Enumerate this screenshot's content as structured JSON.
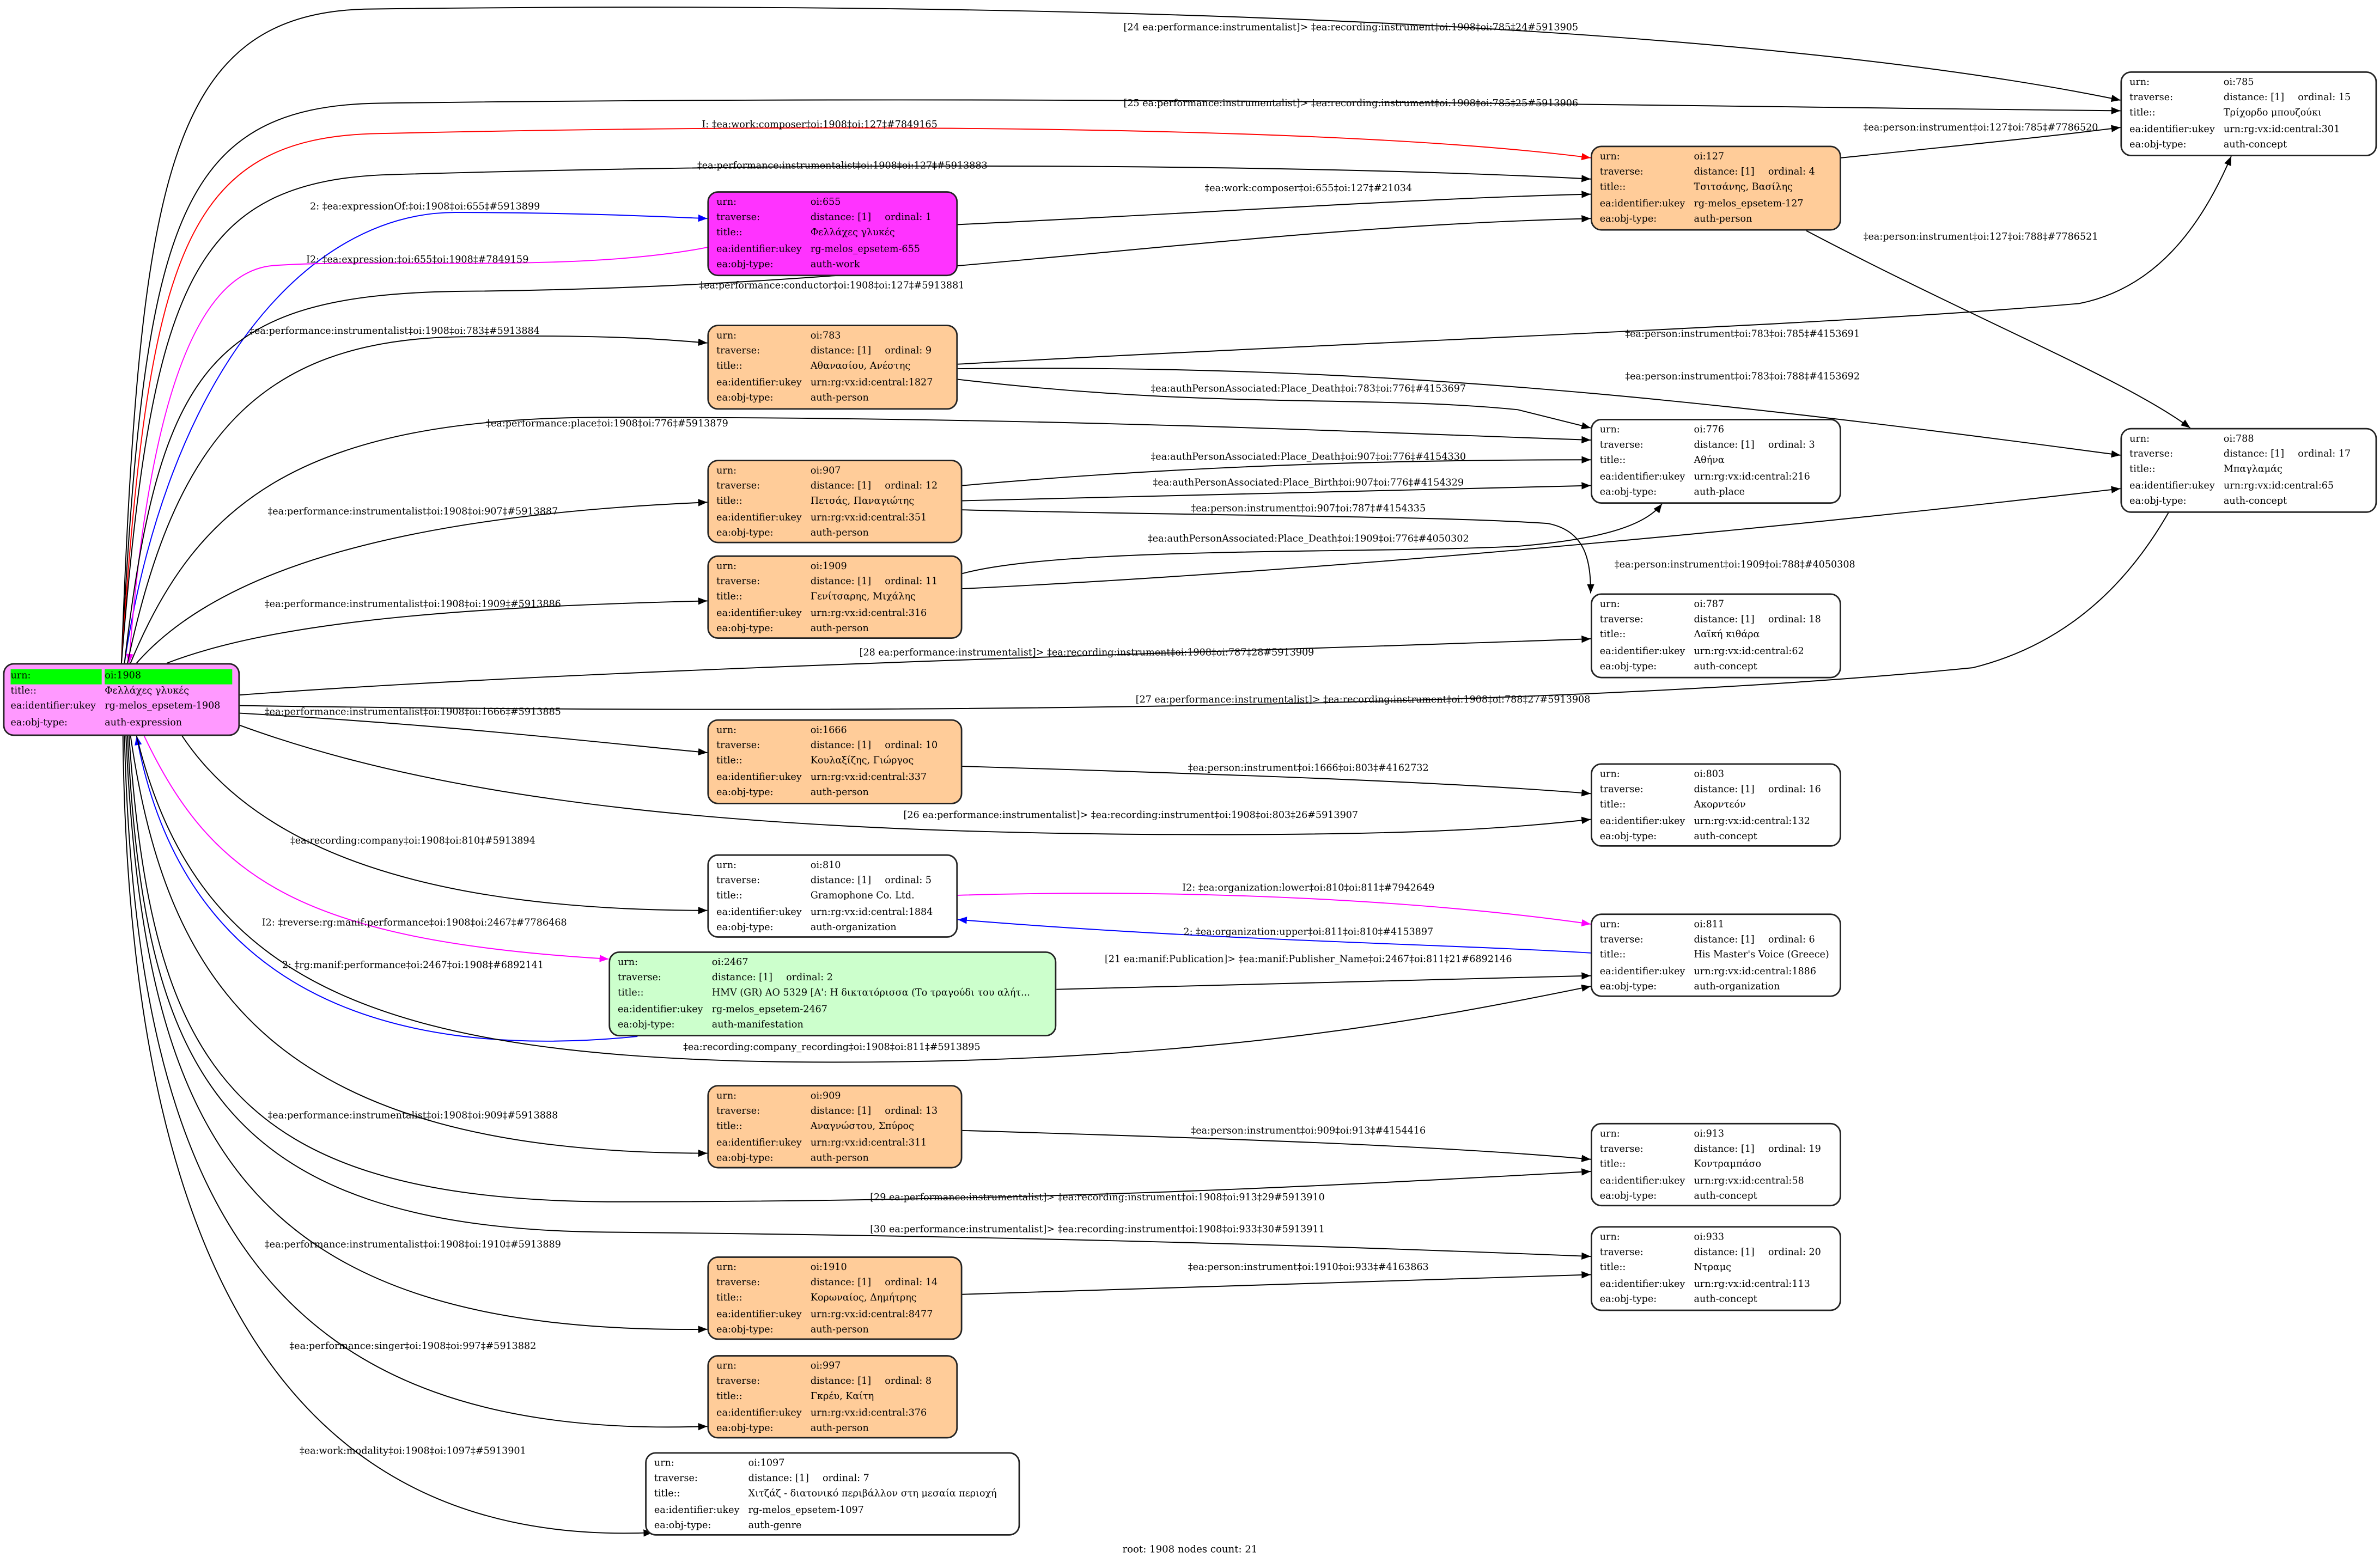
{
  "colors": {
    "root_fill": "#ff99ff",
    "root_highlight": "#00ff00",
    "work_fill": "#ff33ff",
    "person_fill": "#ffcc99",
    "manifestation_fill": "#ccffcc",
    "default_fill": "#ffffff",
    "edge_default": "#000000",
    "edge_red": "#ff0000",
    "edge_blue": "#0000ff",
    "edge_magenta": "#ff00ff"
  },
  "row_labels": {
    "urn": "urn:",
    "traverse": "traverse:",
    "title": "title::",
    "ukey": "ea:identifier:ukey",
    "obj_type": "ea:obj-type:"
  },
  "nodes": [
    {
      "id": "1908",
      "urn": "oi:1908",
      "title": "Φελλάχες γλυκές",
      "ukey": "rg-melos_epsetem-1908",
      "obj_type": "auth-expression",
      "fill": "#ff99ff",
      "root": true
    },
    {
      "id": "655",
      "urn": "oi:655",
      "distance": "distance: [1]",
      "ordinal": "ordinal: 1",
      "title": "Φελλάχες γλυκές",
      "ukey": "rg-melos_epsetem-655",
      "obj_type": "auth-work",
      "fill": "#ff33ff"
    },
    {
      "id": "127",
      "urn": "oi:127",
      "distance": "distance: [1]",
      "ordinal": "ordinal: 4",
      "title": "Τσιτσάνης, Βασίλης",
      "ukey": "rg-melos_epsetem-127",
      "obj_type": "auth-person",
      "fill": "#ffcc99"
    },
    {
      "id": "785",
      "urn": "oi:785",
      "distance": "distance: [1]",
      "ordinal": "ordinal: 15",
      "title": "Τρίχορδο μπουζούκι",
      "ukey": "urn:rg:vx:id:central:301",
      "obj_type": "auth-concept",
      "fill": "#ffffff"
    },
    {
      "id": "783",
      "urn": "oi:783",
      "distance": "distance: [1]",
      "ordinal": "ordinal: 9",
      "title": "Αθανασίου, Ανέστης",
      "ukey": "urn:rg:vx:id:central:1827",
      "obj_type": "auth-person",
      "fill": "#ffcc99"
    },
    {
      "id": "776",
      "urn": "oi:776",
      "distance": "distance: [1]",
      "ordinal": "ordinal: 3",
      "title": "Αθήνα",
      "ukey": "urn:rg:vx:id:central:216",
      "obj_type": "auth-place",
      "fill": "#ffffff"
    },
    {
      "id": "788",
      "urn": "oi:788",
      "distance": "distance: [1]",
      "ordinal": "ordinal: 17",
      "title": "Μπαγλαμάς",
      "ukey": "urn:rg:vx:id:central:65",
      "obj_type": "auth-concept",
      "fill": "#ffffff"
    },
    {
      "id": "907",
      "urn": "oi:907",
      "distance": "distance: [1]",
      "ordinal": "ordinal: 12",
      "title": "Πετσάς, Παναγιώτης",
      "ukey": "urn:rg:vx:id:central:351",
      "obj_type": "auth-person",
      "fill": "#ffcc99"
    },
    {
      "id": "1909",
      "urn": "oi:1909",
      "distance": "distance: [1]",
      "ordinal": "ordinal: 11",
      "title": "Γενίτσαρης, Μιχάλης",
      "ukey": "urn:rg:vx:id:central:316",
      "obj_type": "auth-person",
      "fill": "#ffcc99"
    },
    {
      "id": "787",
      "urn": "oi:787",
      "distance": "distance: [1]",
      "ordinal": "ordinal: 18",
      "title": "Λαϊκή κιθάρα",
      "ukey": "urn:rg:vx:id:central:62",
      "obj_type": "auth-concept",
      "fill": "#ffffff"
    },
    {
      "id": "1666",
      "urn": "oi:1666",
      "distance": "distance: [1]",
      "ordinal": "ordinal: 10",
      "title": "Κουλαξίζης, Γιώργος",
      "ukey": "urn:rg:vx:id:central:337",
      "obj_type": "auth-person",
      "fill": "#ffcc99"
    },
    {
      "id": "803",
      "urn": "oi:803",
      "distance": "distance: [1]",
      "ordinal": "ordinal: 16",
      "title": "Ακορντεόν",
      "ukey": "urn:rg:vx:id:central:132",
      "obj_type": "auth-concept",
      "fill": "#ffffff"
    },
    {
      "id": "810",
      "urn": "oi:810",
      "distance": "distance: [1]",
      "ordinal": "ordinal: 5",
      "title": "Gramophone Co. Ltd.",
      "ukey": "urn:rg:vx:id:central:1884",
      "obj_type": "auth-organization",
      "fill": "#ffffff"
    },
    {
      "id": "811",
      "urn": "oi:811",
      "distance": "distance: [1]",
      "ordinal": "ordinal: 6",
      "title": "His Master's Voice (Greece)",
      "ukey": "urn:rg:vx:id:central:1886",
      "obj_type": "auth-organization",
      "fill": "#ffffff"
    },
    {
      "id": "2467",
      "urn": "oi:2467",
      "distance": "distance: [1]",
      "ordinal": "ordinal: 2",
      "title": "HMV (GR) AO 5329 [A': Η δικτατόρισσα (Το τραγούδι του αλήτ...",
      "ukey": "rg-melos_epsetem-2467",
      "obj_type": "auth-manifestation",
      "fill": "#ccffcc"
    },
    {
      "id": "909",
      "urn": "oi:909",
      "distance": "distance: [1]",
      "ordinal": "ordinal: 13",
      "title": "Αναγνώστου, Σπύρος",
      "ukey": "urn:rg:vx:id:central:311",
      "obj_type": "auth-person",
      "fill": "#ffcc99"
    },
    {
      "id": "913",
      "urn": "oi:913",
      "distance": "distance: [1]",
      "ordinal": "ordinal: 19",
      "title": "Κοντραμπάσο",
      "ukey": "urn:rg:vx:id:central:58",
      "obj_type": "auth-concept",
      "fill": "#ffffff"
    },
    {
      "id": "933",
      "urn": "oi:933",
      "distance": "distance: [1]",
      "ordinal": "ordinal: 20",
      "title": "Ντραμς",
      "ukey": "urn:rg:vx:id:central:113",
      "obj_type": "auth-concept",
      "fill": "#ffffff"
    },
    {
      "id": "1910",
      "urn": "oi:1910",
      "distance": "distance: [1]",
      "ordinal": "ordinal: 14",
      "title": "Κορωναίος, Δημήτρης",
      "ukey": "urn:rg:vx:id:central:8477",
      "obj_type": "auth-person",
      "fill": "#ffcc99"
    },
    {
      "id": "997",
      "urn": "oi:997",
      "distance": "distance: [1]",
      "ordinal": "ordinal: 8",
      "title": "Γκρέυ, Καίτη",
      "ukey": "urn:rg:vx:id:central:376",
      "obj_type": "auth-person",
      "fill": "#ffcc99"
    },
    {
      "id": "1097",
      "urn": "oi:1097",
      "distance": "distance: [1]",
      "ordinal": "ordinal: 7",
      "title": "Χιτζάζ - διατονικό περιβάλλον στη μεσαία περιοχή",
      "ukey": "rg-melos_epsetem-1097",
      "obj_type": "auth-genre",
      "fill": "#ffffff"
    }
  ],
  "edges": [
    {
      "from": "1908",
      "to": "785",
      "color": "#000000",
      "label": "[24 ea:performance:instrumentalist]> ‡ea:recording:instrument‡oi:1908‡oi:785‡24#5913905"
    },
    {
      "from": "1908",
      "to": "785",
      "color": "#000000",
      "label": "[25 ea:performance:instrumentalist]> ‡ea:recording:instrument‡oi:1908‡oi:785‡25#5913906"
    },
    {
      "from": "1908",
      "to": "127",
      "color": "#ff0000",
      "label": "I: ‡ea:work:composer‡oi:1908‡oi:127‡#7849165"
    },
    {
      "from": "1908",
      "to": "127",
      "color": "#000000",
      "label": "‡ea:performance:instrumentalist‡oi:1908‡oi:127‡#5913883"
    },
    {
      "from": "1908",
      "to": "655",
      "color": "#0000ff",
      "label": "2: ‡ea:expressionOf:‡oi:1908‡oi:655‡#5913899"
    },
    {
      "from": "655",
      "to": "1908",
      "color": "#ff00ff",
      "label": "I2: ‡ea:expression:‡oi:655‡oi:1908‡#7849159"
    },
    {
      "from": "1908",
      "to": "127",
      "color": "#000000",
      "label": "‡ea:performance:conductor‡oi:1908‡oi:127‡#5913881"
    },
    {
      "from": "1908",
      "to": "783",
      "color": "#000000",
      "label": "‡ea:performance:instrumentalist‡oi:1908‡oi:783‡#5913884"
    },
    {
      "from": "1908",
      "to": "776",
      "color": "#000000",
      "label": "‡ea:performance:place‡oi:1908‡oi:776‡#5913879"
    },
    {
      "from": "1908",
      "to": "907",
      "color": "#000000",
      "label": "‡ea:performance:instrumentalist‡oi:1908‡oi:907‡#5913887"
    },
    {
      "from": "1908",
      "to": "1909",
      "color": "#000000",
      "label": "‡ea:performance:instrumentalist‡oi:1908‡oi:1909‡#5913886"
    },
    {
      "from": "1908",
      "to": "787",
      "color": "#000000",
      "label": "[28 ea:performance:instrumentalist]> ‡ea:recording:instrument‡oi:1908‡oi:787‡28#5913909"
    },
    {
      "from": "1908",
      "to": "788",
      "color": "#000000",
      "label": "[27 ea:performance:instrumentalist]> ‡ea:recording:instrument‡oi:1908‡oi:788‡27#5913908"
    },
    {
      "from": "1908",
      "to": "1666",
      "color": "#000000",
      "label": "‡ea:performance:instrumentalist‡oi:1908‡oi:1666‡#5913885"
    },
    {
      "from": "1908",
      "to": "803",
      "color": "#000000",
      "label": "[26 ea:performance:instrumentalist]> ‡ea:recording:instrument‡oi:1908‡oi:803‡26#5913907"
    },
    {
      "from": "1908",
      "to": "810",
      "color": "#000000",
      "label": "‡ea:recording:company‡oi:1908‡oi:810‡#5913894"
    },
    {
      "from": "1908",
      "to": "2467",
      "color": "#ff00ff",
      "label": "I2: ‡reverse:rg:manif:performance‡oi:1908‡oi:2467‡#7786468"
    },
    {
      "from": "2467",
      "to": "1908",
      "color": "#0000ff",
      "label": "2: ‡rg:manif:performance‡oi:2467‡oi:1908‡#6892141"
    },
    {
      "from": "1908",
      "to": "811",
      "color": "#000000",
      "label": "‡ea:recording:company_recording‡oi:1908‡oi:811‡#5913895"
    },
    {
      "from": "1908",
      "to": "909",
      "color": "#000000",
      "label": "‡ea:performance:instrumentalist‡oi:1908‡oi:909‡#5913888"
    },
    {
      "from": "1908",
      "to": "913",
      "color": "#000000",
      "label": "[29 ea:performance:instrumentalist]> ‡ea:recording:instrument‡oi:1908‡oi:913‡29#5913910"
    },
    {
      "from": "1908",
      "to": "933",
      "color": "#000000",
      "label": "[30 ea:performance:instrumentalist]> ‡ea:recording:instrument‡oi:1908‡oi:933‡30#5913911"
    },
    {
      "from": "1908",
      "to": "1910",
      "color": "#000000",
      "label": "‡ea:performance:instrumentalist‡oi:1908‡oi:1910‡#5913889"
    },
    {
      "from": "1908",
      "to": "997",
      "color": "#000000",
      "label": "‡ea:performance:singer‡oi:1908‡oi:997‡#5913882"
    },
    {
      "from": "1908",
      "to": "1097",
      "color": "#000000",
      "label": "‡ea:work:modality‡oi:1908‡oi:1097‡#5913901"
    },
    {
      "from": "655",
      "to": "127",
      "color": "#000000",
      "label": "‡ea:work:composer‡oi:655‡oi:127‡#21034"
    },
    {
      "from": "127",
      "to": "785",
      "color": "#000000",
      "label": "‡ea:person:instrument‡oi:127‡oi:785‡#7786520"
    },
    {
      "from": "127",
      "to": "788",
      "color": "#000000",
      "label": "‡ea:person:instrument‡oi:127‡oi:788‡#7786521"
    },
    {
      "from": "783",
      "to": "785",
      "color": "#000000",
      "label": "‡ea:person:instrument‡oi:783‡oi:785‡#4153691"
    },
    {
      "from": "783",
      "to": "788",
      "color": "#000000",
      "label": "‡ea:person:instrument‡oi:783‡oi:788‡#4153692"
    },
    {
      "from": "783",
      "to": "776",
      "color": "#000000",
      "label": "‡ea:authPersonAssociated:Place_Death‡oi:783‡oi:776‡#4153697"
    },
    {
      "from": "907",
      "to": "776",
      "color": "#000000",
      "label": "‡ea:authPersonAssociated:Place_Death‡oi:907‡oi:776‡#4154330"
    },
    {
      "from": "907",
      "to": "776",
      "color": "#000000",
      "label": "‡ea:authPersonAssociated:Place_Birth‡oi:907‡oi:776‡#4154329"
    },
    {
      "from": "907",
      "to": "787",
      "color": "#000000",
      "label": "‡ea:person:instrument‡oi:907‡oi:787‡#4154335"
    },
    {
      "from": "1909",
      "to": "776",
      "color": "#000000",
      "label": "‡ea:authPersonAssociated:Place_Death‡oi:1909‡oi:776‡#4050302"
    },
    {
      "from": "1909",
      "to": "788",
      "color": "#000000",
      "label": "‡ea:person:instrument‡oi:1909‡oi:788‡#4050308"
    },
    {
      "from": "1666",
      "to": "803",
      "color": "#000000",
      "label": "‡ea:person:instrument‡oi:1666‡oi:803‡#4162732"
    },
    {
      "from": "810",
      "to": "811",
      "color": "#ff00ff",
      "label": "I2: ‡ea:organization:lower‡oi:810‡oi:811‡#7942649"
    },
    {
      "from": "811",
      "to": "810",
      "color": "#0000ff",
      "label": "2: ‡ea:organization:upper‡oi:811‡oi:810‡#4153897"
    },
    {
      "from": "2467",
      "to": "811",
      "color": "#000000",
      "label": "[21 ea:manif:Publication]> ‡ea:manif:Publisher_Name‡oi:2467‡oi:811‡21#6892146"
    },
    {
      "from": "909",
      "to": "913",
      "color": "#000000",
      "label": "‡ea:person:instrument‡oi:909‡oi:913‡#4154416"
    },
    {
      "from": "1910",
      "to": "933",
      "color": "#000000",
      "label": "‡ea:person:instrument‡oi:1910‡oi:933‡#4163863"
    }
  ],
  "footer": "root: 1908 nodes count: 21"
}
